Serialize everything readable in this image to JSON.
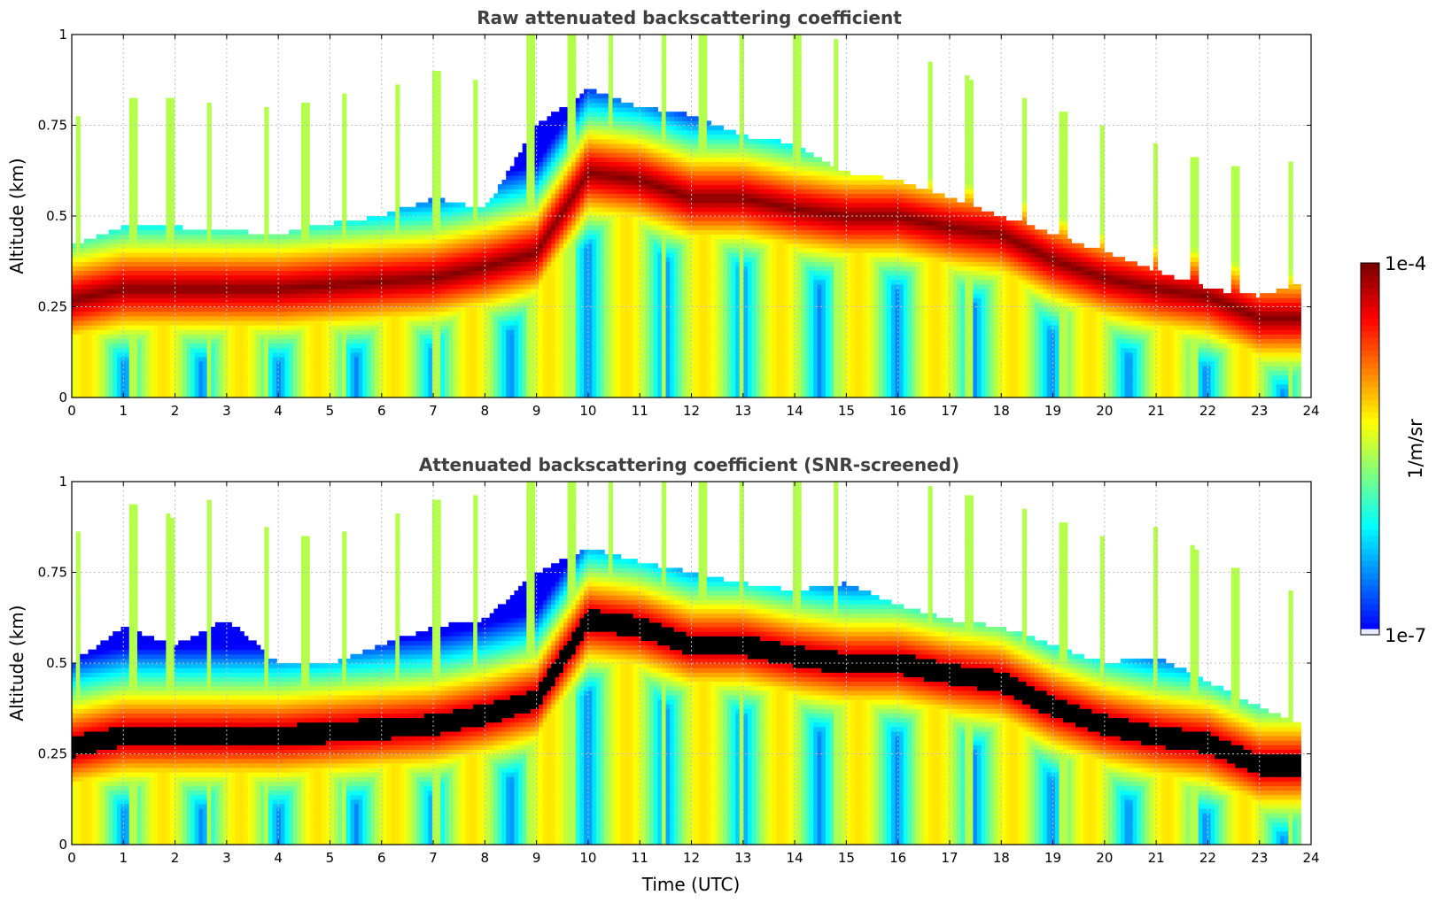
{
  "chart_data": [
    {
      "type": "heatmap",
      "title": "Raw attenuated backscattering coefficient",
      "ylabel": "Altitude (km)",
      "xlabel": "",
      "xlim": [
        0,
        24
      ],
      "ylim": [
        0,
        1
      ],
      "x_ticks": [
        "0",
        "1",
        "2",
        "3",
        "4",
        "5",
        "6",
        "7",
        "8",
        "9",
        "10",
        "11",
        "12",
        "13",
        "14",
        "15",
        "16",
        "17",
        "18",
        "19",
        "20",
        "21",
        "22",
        "23",
        "24"
      ],
      "y_ticks": [
        "0",
        "0.25",
        "0.5",
        "0.75",
        "1"
      ],
      "grid": true,
      "layer_top_km": [
        0.42,
        0.47,
        0.47,
        0.46,
        0.45,
        0.48,
        0.5,
        0.55,
        0.52,
        0.75,
        0.85,
        0.8,
        0.78,
        0.72,
        0.7,
        0.62,
        0.6,
        0.55,
        0.5,
        0.45,
        0.4,
        0.35,
        0.3,
        0.28,
        0.32
      ],
      "layer_center_km": [
        0.27,
        0.3,
        0.3,
        0.3,
        0.3,
        0.31,
        0.32,
        0.33,
        0.36,
        0.4,
        0.62,
        0.6,
        0.55,
        0.55,
        0.52,
        0.5,
        0.5,
        0.47,
        0.45,
        0.38,
        0.33,
        0.3,
        0.28,
        0.22,
        0.22
      ],
      "data_end_hour": 23.8
    },
    {
      "type": "heatmap",
      "title": "Attenuated backscattering coefficient (SNR-screened)",
      "ylabel": "Altitude (km)",
      "xlabel": "Time (UTC)",
      "xlim": [
        0,
        24
      ],
      "ylim": [
        0,
        1
      ],
      "x_ticks": [
        "0",
        "1",
        "2",
        "3",
        "4",
        "5",
        "6",
        "7",
        "8",
        "9",
        "10",
        "11",
        "12",
        "13",
        "14",
        "15",
        "16",
        "17",
        "18",
        "19",
        "20",
        "21",
        "22",
        "23",
        "24"
      ],
      "y_ticks": [
        "0",
        "0.25",
        "0.5",
        "0.75",
        "1"
      ],
      "grid": true,
      "layer_top_km": [
        0.5,
        0.6,
        0.55,
        0.62,
        0.5,
        0.5,
        0.55,
        0.6,
        0.62,
        0.75,
        0.82,
        0.78,
        0.75,
        0.72,
        0.7,
        0.72,
        0.66,
        0.62,
        0.6,
        0.55,
        0.5,
        0.52,
        0.45,
        0.38,
        0.32
      ],
      "layer_center_km": [
        0.27,
        0.3,
        0.3,
        0.3,
        0.3,
        0.31,
        0.32,
        0.33,
        0.36,
        0.4,
        0.62,
        0.6,
        0.55,
        0.55,
        0.52,
        0.5,
        0.5,
        0.47,
        0.45,
        0.38,
        0.33,
        0.3,
        0.28,
        0.22,
        0.22
      ],
      "data_end_hour": 23.8
    }
  ],
  "colorbar": {
    "label": "1/m/sr",
    "max_label": "1e-4",
    "min_label": "1e-7",
    "scale": "log",
    "colormap": "jet",
    "range": [
      1e-07,
      0.0001
    ]
  }
}
